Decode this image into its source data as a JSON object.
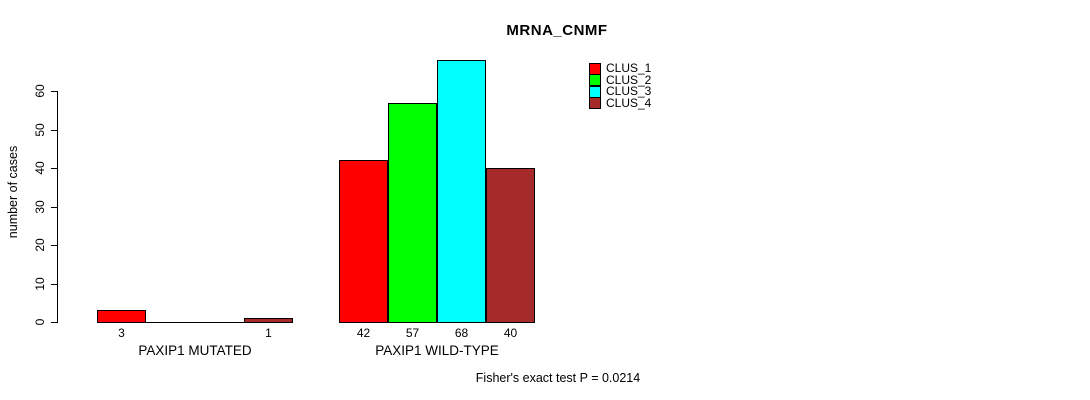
{
  "chart_data": {
    "type": "bar",
    "title": "MRNA_CNMF",
    "ylabel": "number of cases",
    "xlabel": "",
    "ylim": [
      0,
      60
    ],
    "yticks": [
      0,
      10,
      20,
      30,
      40,
      50,
      60
    ],
    "grid": false,
    "legend_position": "top-right",
    "background_color": "#FFFFFF",
    "annotation": "Fisher's exact test P = 0.0214",
    "series": [
      {
        "name": "CLUS_1",
        "color": "#FF0000"
      },
      {
        "name": "CLUS_2",
        "color": "#00FF00"
      },
      {
        "name": "CLUS_3",
        "color": "#00FFFF"
      },
      {
        "name": "CLUS_4",
        "color": "#A52A2A"
      }
    ],
    "groups": [
      {
        "label": "PAXIP1 MUTATED",
        "values": [
          3,
          0,
          0,
          1
        ],
        "bar_labels": [
          "3",
          "",
          "",
          "1"
        ]
      },
      {
        "label": "PAXIP1 WILD-TYPE",
        "values": [
          42,
          57,
          68,
          40
        ],
        "bar_labels": [
          "42",
          "57",
          "68",
          "40"
        ]
      }
    ]
  }
}
